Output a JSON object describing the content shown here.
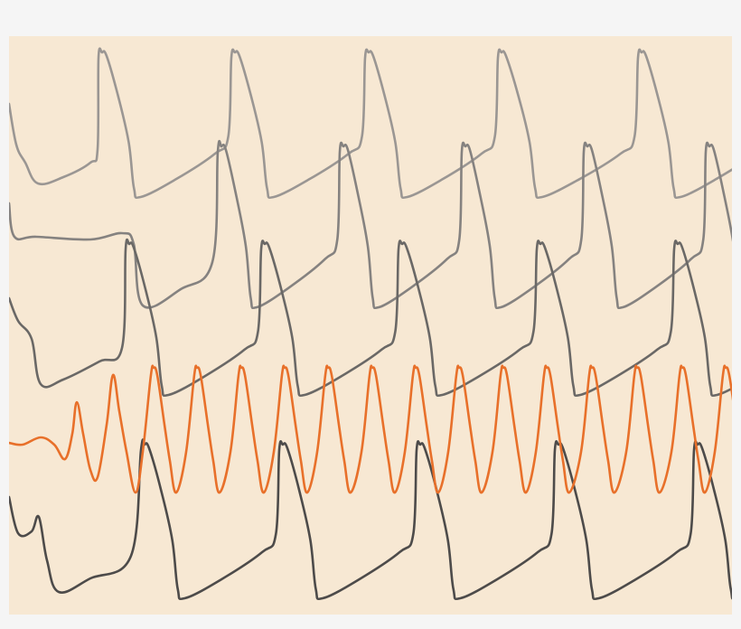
{
  "colors": {
    "page_background": "#f5f5f5",
    "panel_background": "#f7e8d3",
    "trace_1": "#9a9693",
    "trace_2": "#858280",
    "trace_3": "#6a6866",
    "trace_orange": "#e8702a",
    "trace_5": "#4d4b4a"
  }
}
